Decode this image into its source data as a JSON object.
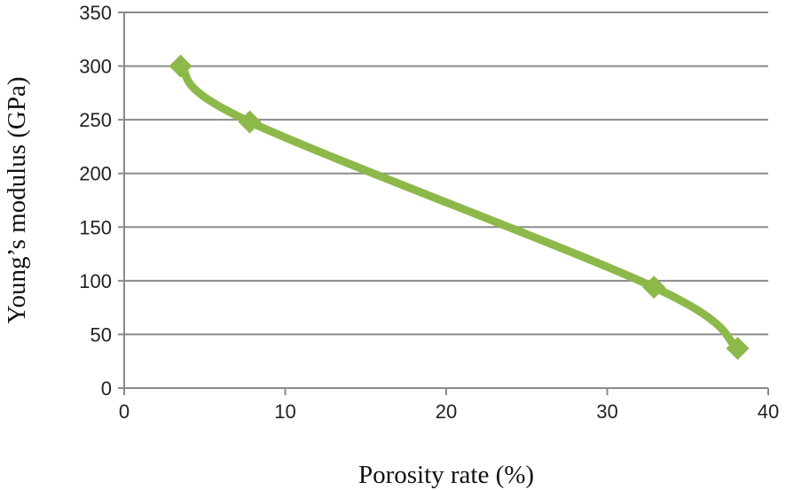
{
  "chart_data": {
    "type": "line",
    "title": "",
    "xlabel": "Porosity rate (%)",
    "ylabel": "Young’s modulus (GPa)",
    "xlim": [
      0,
      40
    ],
    "ylim": [
      0,
      350
    ],
    "xticks": [
      "0",
      "10",
      "20",
      "30",
      "40"
    ],
    "yticks": [
      "0",
      "50",
      "100",
      "150",
      "200",
      "250",
      "300",
      "350"
    ],
    "grid": "horizontal",
    "legend": "none",
    "smooth": true,
    "series": [
      {
        "name": "Young's modulus",
        "color": "#8db84a",
        "marker": "diamond",
        "x": [
          3.5,
          7.8,
          32.9,
          38.1
        ],
        "y": [
          300,
          248,
          94,
          37
        ]
      }
    ]
  }
}
